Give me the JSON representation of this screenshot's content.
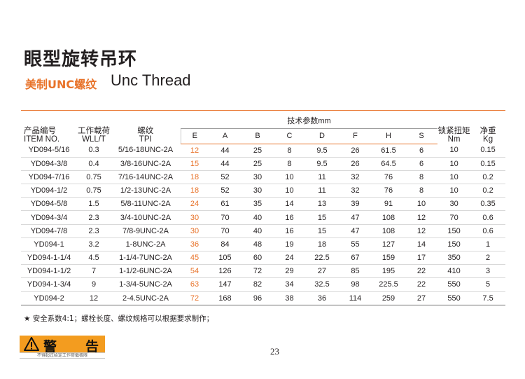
{
  "title": "眼型旋转吊环",
  "subtitle_cn": "美制UNC螺纹",
  "subtitle_en": "Unc Thread",
  "colors": {
    "accent": "#e8732a",
    "warning_bg": "#f39c1f"
  },
  "table": {
    "item_header_cn": "产品编号",
    "item_header_en": "ITEM NO.",
    "wll_header_cn": "工作载荷",
    "wll_header_en": "WLL/T",
    "tpi_header_cn": "螺纹",
    "tpi_header_en": "TPI",
    "tech_header": "技术参数mm",
    "torque_header_cn": "锁紧扭矩",
    "torque_header_en": "Nm",
    "weight_header_cn": "净重",
    "weight_header_en": "Kg",
    "sub_columns": [
      "E",
      "A",
      "B",
      "C",
      "D",
      "F",
      "H",
      "S"
    ],
    "rows": [
      [
        "YD094-5/16",
        "0.3",
        "5/16-18UNC-2A",
        "12",
        "44",
        "25",
        "8",
        "9.5",
        "26",
        "61.5",
        "6",
        "10",
        "0.15"
      ],
      [
        "YD094-3/8",
        "0.4",
        "3/8-16UNC-2A",
        "15",
        "44",
        "25",
        "8",
        "9.5",
        "26",
        "64.5",
        "6",
        "10",
        "0.15"
      ],
      [
        "YD094-7/16",
        "0.75",
        "7/16-14UNC-2A",
        "18",
        "52",
        "30",
        "10",
        "11",
        "32",
        "76",
        "8",
        "10",
        "0.2"
      ],
      [
        "YD094-1/2",
        "0.75",
        "1/2-13UNC-2A",
        "18",
        "52",
        "30",
        "10",
        "11",
        "32",
        "76",
        "8",
        "10",
        "0.2"
      ],
      [
        "YD094-5/8",
        "1.5",
        "5/8-11UNC-2A",
        "24",
        "61",
        "35",
        "14",
        "13",
        "39",
        "91",
        "10",
        "30",
        "0.35"
      ],
      [
        "YD094-3/4",
        "2.3",
        "3/4-10UNC-2A",
        "30",
        "70",
        "40",
        "16",
        "15",
        "47",
        "108",
        "12",
        "70",
        "0.6"
      ],
      [
        "YD094-7/8",
        "2.3",
        "7/8-9UNC-2A",
        "30",
        "70",
        "40",
        "16",
        "15",
        "47",
        "108",
        "12",
        "150",
        "0.6"
      ],
      [
        "YD094-1",
        "3.2",
        "1-8UNC-2A",
        "36",
        "84",
        "48",
        "19",
        "18",
        "55",
        "127",
        "14",
        "150",
        "1"
      ],
      [
        "YD094-1-1/4",
        "4.5",
        "1-1/4-7UNC-2A",
        "45",
        "105",
        "60",
        "24",
        "22.5",
        "67",
        "159",
        "17",
        "350",
        "2"
      ],
      [
        "YD094-1-1/2",
        "7",
        "1-1/2-6UNC-2A",
        "54",
        "126",
        "72",
        "29",
        "27",
        "85",
        "195",
        "22",
        "410",
        "3"
      ],
      [
        "YD094-1-3/4",
        "9",
        "1-3/4-5UNC-2A",
        "63",
        "147",
        "82",
        "34",
        "32.5",
        "98",
        "225.5",
        "22",
        "550",
        "5"
      ],
      [
        "YD094-2",
        "12",
        "2-4.5UNC-2A",
        "72",
        "168",
        "96",
        "38",
        "36",
        "114",
        "259",
        "27",
        "550",
        "7.5"
      ]
    ]
  },
  "note": "★ 安全系数4:1；螺栓长度、螺纹规格可以根据要求制作；",
  "page_number": "23",
  "warning": {
    "word1": "警",
    "word2": "告",
    "text": "不得超过给定工作荷载极限",
    "icon": "warning-triangle-icon"
  }
}
